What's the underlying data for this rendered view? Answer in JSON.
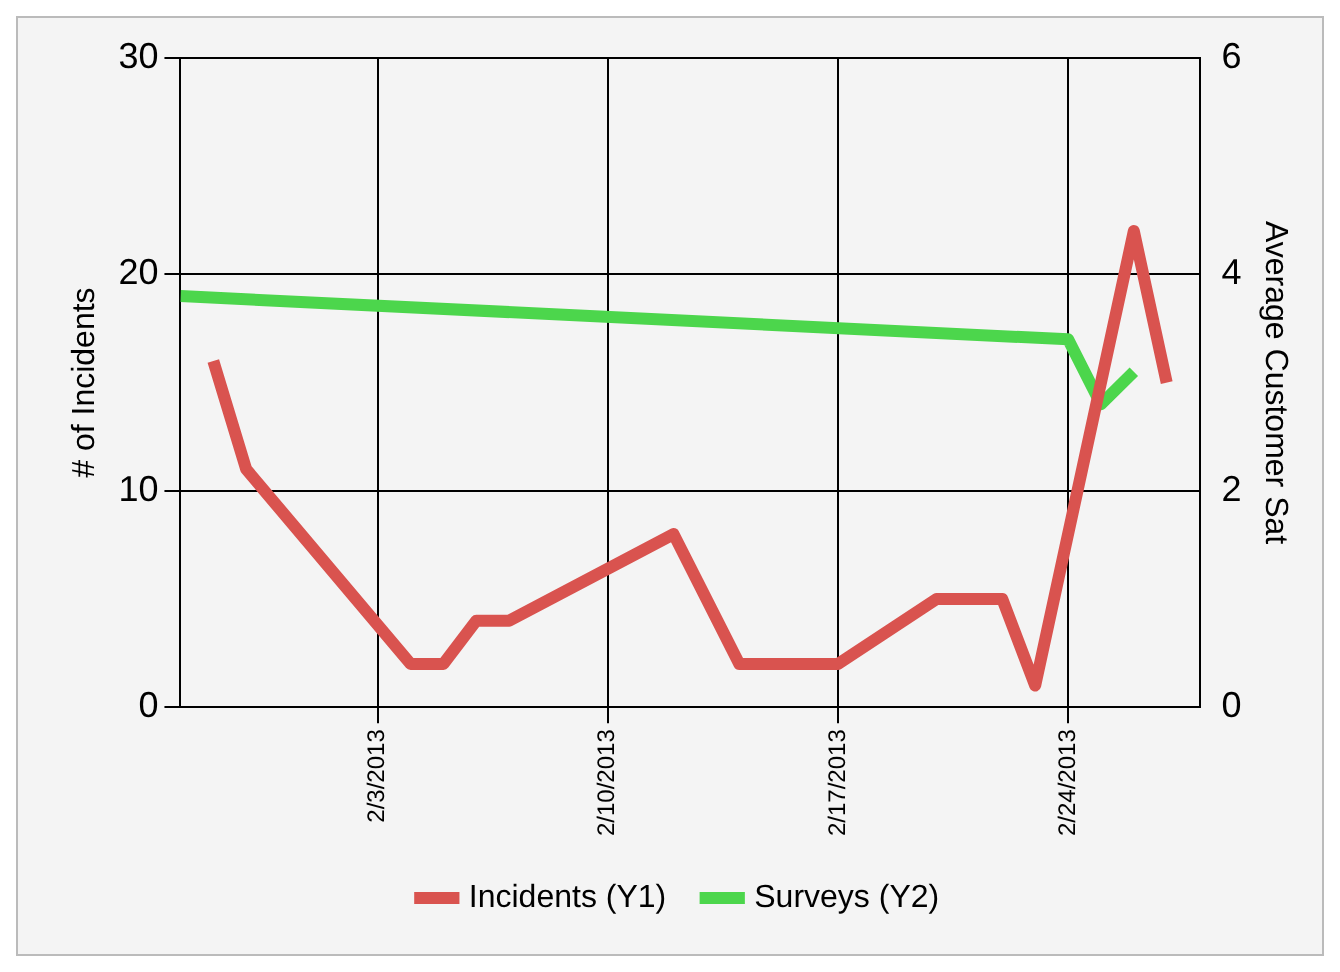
{
  "chart_data": {
    "type": "line",
    "ylabel": "# of Incidents",
    "y2label": "Average Customer Sat",
    "xlim": [
      "2013-01-28",
      "2013-02-28"
    ],
    "xticks": [
      {
        "value": "2013-02-03",
        "label": "2/3/2013"
      },
      {
        "value": "2013-02-10",
        "label": "2/10/2013"
      },
      {
        "value": "2013-02-17",
        "label": "2/17/2013"
      },
      {
        "value": "2013-02-24",
        "label": "2/24/2013"
      }
    ],
    "ylim": [
      0,
      30
    ],
    "yticks": [
      0,
      10,
      20,
      30
    ],
    "y2lim": [
      0,
      6
    ],
    "y2ticks": [
      0,
      2,
      4,
      6
    ],
    "grid": true,
    "legend": "bottom",
    "series": [
      {
        "name": "Incidents (Y1)",
        "color": "#d9534f",
        "x": [
          "2013-01-29",
          "2013-01-30",
          "2013-02-04",
          "2013-02-05",
          "2013-02-06",
          "2013-02-07",
          "2013-02-12",
          "2013-02-14",
          "2013-02-17",
          "2013-02-20",
          "2013-02-22",
          "2013-02-23",
          "2013-02-26",
          "2013-02-27"
        ],
        "values": [
          16,
          11,
          2,
          2,
          4,
          4,
          8,
          2,
          2,
          5,
          5,
          1,
          22,
          15
        ]
      },
      {
        "name": "Surveys (Y2)",
        "color": "#4cd64c",
        "axis": "y2",
        "x": [
          "2013-01-28",
          "2013-02-24",
          "2013-02-25",
          "2013-02-26"
        ],
        "values": [
          3.8,
          3.4,
          2.8,
          3.1
        ]
      }
    ]
  }
}
